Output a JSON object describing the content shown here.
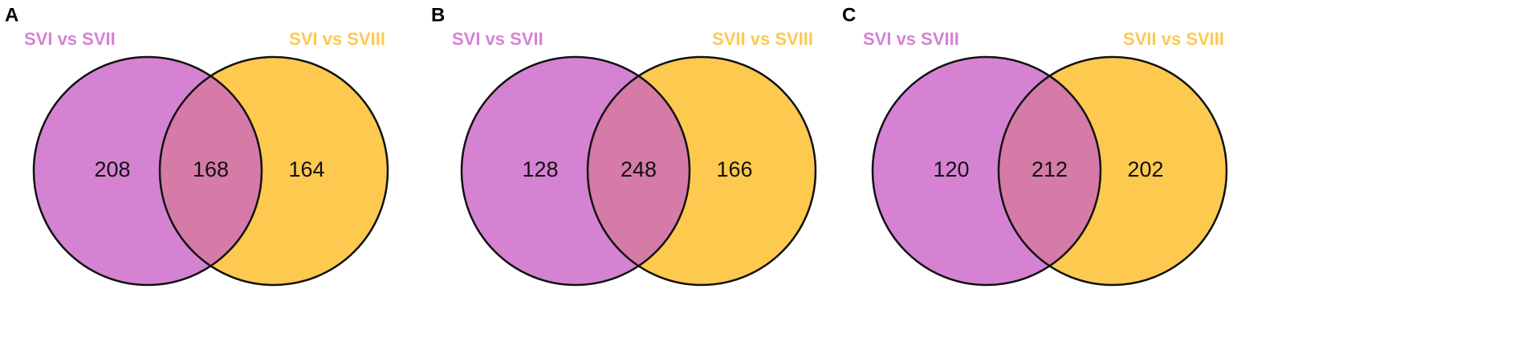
{
  "chart_data": [
    {
      "type": "venn",
      "panel": "A",
      "sets": [
        {
          "name": "SVI vs SVII",
          "color": "#d682d3"
        },
        {
          "name": "SVI vs SVIII",
          "color": "#fdc94f"
        }
      ],
      "overlap_color": "#d67aa8",
      "values": [
        208,
        168,
        164
      ]
    },
    {
      "type": "venn",
      "panel": "B",
      "sets": [
        {
          "name": "SVI vs SVII",
          "color": "#d682d3"
        },
        {
          "name": "SVII vs SVIII",
          "color": "#fdc94f"
        }
      ],
      "overlap_color": "#d67aa8",
      "values": [
        128,
        248,
        166
      ]
    },
    {
      "type": "venn",
      "panel": "C",
      "sets": [
        {
          "name": "SVI vs SVIII",
          "color": "#d682d3"
        },
        {
          "name": "SVII vs SVIII",
          "color": "#fdc94f"
        }
      ],
      "overlap_color": "#d67aa8",
      "values": [
        120,
        212,
        202
      ]
    }
  ]
}
